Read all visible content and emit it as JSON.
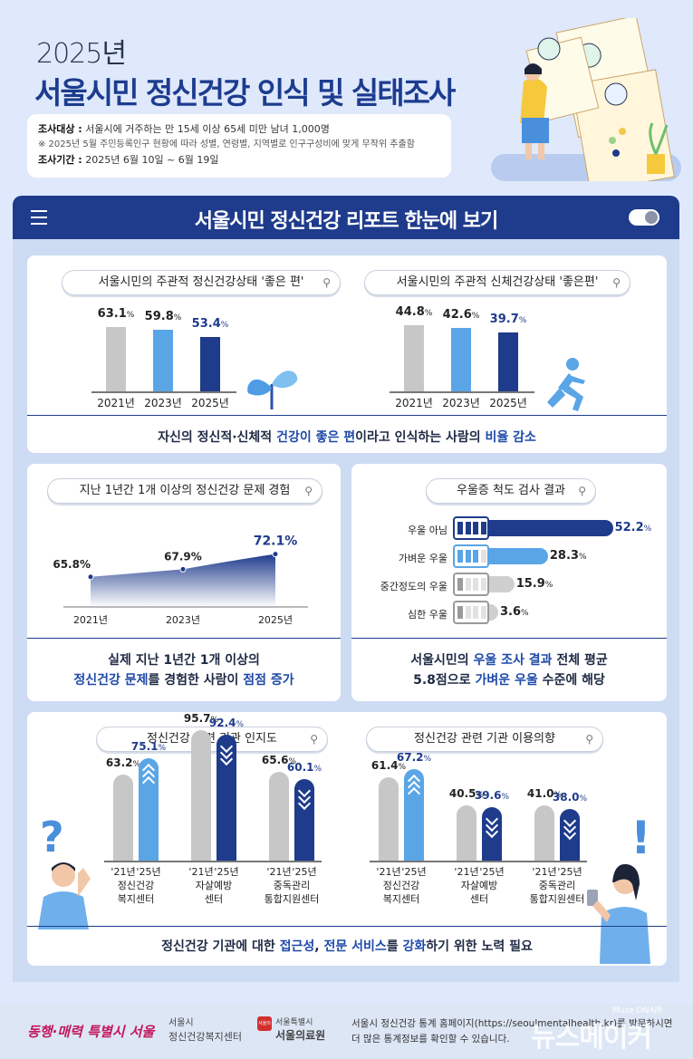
{
  "header": {
    "year": "2025년",
    "title": "서울시민 정신건강 인식 및 실태조사",
    "target_label": "조사대상 :",
    "target_text": "서울시에 거주하는 만 15세 이상 65세 미만 남녀 1,000명",
    "target_note": "※ 2025년 5월 주민등록인구 현황에 따라 성별, 연령별, 지역별로 인구구성비에 맞게 무작위 추출함",
    "period_label": "조사기간 :",
    "period_text": "2025년 6월 10일 ~ 6월 19일"
  },
  "banner": {
    "title": "서울시민 정신건강 리포트 한눈에 보기"
  },
  "summaries": {
    "health": {
      "a": "자신의 정신적·신체적 ",
      "b": "건강이 좋은 편",
      "c": "이라고 인식하는 사람의 ",
      "d": "비율 감소"
    },
    "problem": {
      "l1": "실제 지난 1년간 1개 이상의",
      "l2a": "정신건강 문제",
      "l2b": "를 경험한 사람이 ",
      "l2c": "점점 증가"
    },
    "depression": {
      "l1a": "서울시민의 ",
      "l1b": "우울 조사 결과",
      "l1c": " 전체 평균",
      "l2a": "5.8점으로 ",
      "l2b": "가벼운 우울",
      "l2c": " 수준에 해당"
    },
    "institution": {
      "a": "정신건강 기관에 대한 ",
      "b": "접근성",
      "c": ", ",
      "d": "전문 서비스",
      "e": "를 ",
      "f": "강화",
      "g": "하기 위한 노력 필요"
    }
  },
  "colors": {
    "gray": "#c7c7c7",
    "light_blue": "#5aa5e6",
    "navy": "#1e3b8c"
  },
  "chart_data": [
    {
      "type": "bar",
      "title": "서울시민의 주관적 정신건강상태 '좋은 편'",
      "categories": [
        "2021년",
        "2023년",
        "2025년"
      ],
      "values": [
        63.1,
        59.8,
        53.4
      ],
      "labels": [
        "63.1",
        "59.8",
        "53.4"
      ],
      "unit": "%"
    },
    {
      "type": "bar",
      "title": "서울시민의 주관적 신체건강상태 '좋은편'",
      "categories": [
        "2021년",
        "2023년",
        "2025년"
      ],
      "values": [
        44.8,
        42.6,
        39.7
      ],
      "labels": [
        "44.8",
        "42.6",
        "39.7"
      ],
      "unit": "%"
    },
    {
      "type": "area",
      "title": "지난 1년간 1개 이상의 정신건강 문제 경험",
      "categories": [
        "2021년",
        "2023년",
        "2025년"
      ],
      "values": [
        65.8,
        67.9,
        72.1
      ],
      "labels": [
        "65.8",
        "67.9",
        "72.1"
      ],
      "unit": "%"
    },
    {
      "type": "bar",
      "orientation": "horizontal",
      "title": "우울증 척도 검사 결과",
      "categories": [
        "우울 아님",
        "가벼운 우울",
        "중간정도의 우울",
        "심한 우울"
      ],
      "values": [
        52.2,
        28.3,
        15.9,
        3.6
      ],
      "labels": [
        "52.2",
        "28.3",
        "15.9",
        "3.6"
      ],
      "unit": "%"
    },
    {
      "type": "bar",
      "title": "정신건강 관련 기관 인지도",
      "categories": [
        "정신건강\n복지센터",
        "자살예방\n센터",
        "중독관리\n통합지원센터"
      ],
      "years": [
        "'21년",
        "'25년"
      ],
      "series": [
        {
          "values": [
            63.2,
            95.7,
            65.6
          ],
          "labels": [
            "63.2",
            "95.7",
            "65.6"
          ]
        },
        {
          "values": [
            75.1,
            92.4,
            60.1
          ],
          "labels": [
            "75.1",
            "92.4",
            "60.1"
          ]
        }
      ],
      "unit": "%"
    },
    {
      "type": "bar",
      "title": "정신건강 관련 기관 이용의향",
      "categories": [
        "정신건강\n복지센터",
        "자살예방\n센터",
        "중독관리\n통합지원센터"
      ],
      "years": [
        "'21년",
        "'25년"
      ],
      "series": [
        {
          "values": [
            61.4,
            40.5,
            41.0
          ],
          "labels": [
            "61.4",
            "40.5",
            "41.0"
          ]
        },
        {
          "values": [
            67.2,
            39.6,
            38.0
          ],
          "labels": [
            "67.2",
            "39.6",
            "38.0"
          ]
        }
      ],
      "unit": "%"
    }
  ],
  "footer": {
    "logo1": "동행·매력 특별시 서울",
    "logo2a": "서울시",
    "logo2b": "정신건강복지센터",
    "logo3a": "서울특별시",
    "logo3b": "서울의료원",
    "logo3c": "서울의료",
    "note1": "서울시 정신건강 통계 홈페이지(https://seoulmentalhealth.kr)를 방문하시면",
    "note2": "더 많은 통계정보를 확인할 수 있습니다.",
    "watermark": "뉴스메이커",
    "watermark_sub": "Muse ONAIR"
  }
}
